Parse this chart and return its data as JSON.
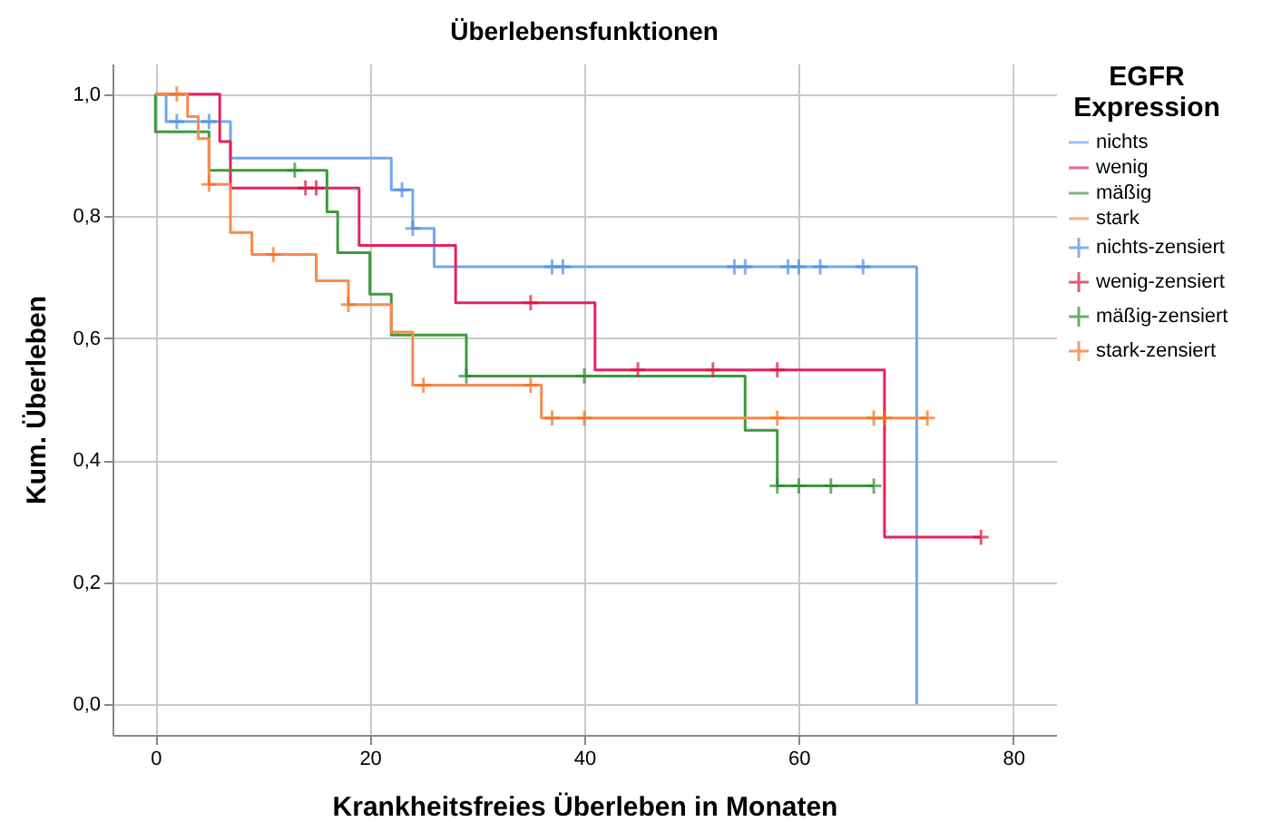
{
  "chart_data": {
    "type": "step",
    "title": "Überlebensfunktionen",
    "xlabel": "Krankheitsfreies Überleben in Monaten",
    "ylabel": "Kum. Überleben",
    "legend_title": "EGFR Expression",
    "xlim": [
      -4,
      84
    ],
    "xticks": [
      0,
      20,
      40,
      60,
      80
    ],
    "ylim": [
      -0.05,
      1.05
    ],
    "yticks": [
      {
        "value": 0,
        "label": "0,0"
      },
      {
        "value": 0.2,
        "label": "0,2"
      },
      {
        "value": 0.4,
        "label": "0,4"
      },
      {
        "value": 0.6,
        "label": "0,6"
      },
      {
        "value": 0.8,
        "label": "0,8"
      },
      {
        "value": 1,
        "label": "1,0"
      }
    ],
    "grid": true,
    "legend": "right",
    "line_style": "solid",
    "series": [
      {
        "name": "nichts",
        "marker": "none",
        "color": "#6fa8ef",
        "x": [
          0,
          1,
          7,
          22,
          24,
          26,
          71
        ],
        "values": [
          1,
          0.955,
          0.895,
          0.843,
          0.78,
          0.717,
          0
        ]
      },
      {
        "name": "wenig",
        "marker": "none",
        "color": "#e3245a",
        "x": [
          0,
          6,
          7,
          19,
          28,
          41,
          68,
          77
        ],
        "values": [
          1,
          0.922,
          0.846,
          0.752,
          0.658,
          0.548,
          0.274,
          0.274
        ]
      },
      {
        "name": "mäßig",
        "marker": "none",
        "color": "#3e9b3e",
        "x": [
          0,
          0,
          5,
          16,
          17,
          20,
          22,
          29,
          55,
          58,
          67
        ],
        "values": [
          1,
          0.938,
          0.875,
          0.807,
          0.74,
          0.672,
          0.605,
          0.538,
          0.449,
          0.358,
          0.358
        ]
      },
      {
        "name": "stark",
        "marker": "none",
        "color": "#f98a4c",
        "x": [
          0,
          3,
          4,
          5,
          7,
          9,
          15,
          18,
          22,
          24,
          36,
          72
        ],
        "values": [
          1,
          0.963,
          0.927,
          0.852,
          0.773,
          0.737,
          0.694,
          0.655,
          0.61,
          0.523,
          0.469,
          0.469
        ]
      },
      {
        "name": "nichts-zensiert",
        "type": "scatter",
        "marker": "cross",
        "color": "#4c8fe3",
        "x": [
          2,
          5,
          23,
          24,
          37,
          38,
          54,
          55,
          59,
          60,
          62,
          66
        ],
        "values": [
          0.955,
          0.955,
          0.843,
          0.78,
          0.717,
          0.717,
          0.717,
          0.717,
          0.717,
          0.717,
          0.717,
          0.717
        ]
      },
      {
        "name": "wenig-zensiert",
        "type": "scatter",
        "marker": "cross",
        "color": "#d6163e",
        "x": [
          14,
          15,
          35,
          45,
          52,
          58,
          77
        ],
        "values": [
          0.846,
          0.846,
          0.658,
          0.548,
          0.548,
          0.548,
          0.274
        ]
      },
      {
        "name": "mäßig-zensiert",
        "type": "scatter",
        "marker": "cross",
        "color": "#2e8b2e",
        "x": [
          13,
          29,
          40,
          58,
          60,
          63,
          67
        ],
        "values": [
          0.875,
          0.538,
          0.538,
          0.358,
          0.358,
          0.358,
          0.358
        ]
      },
      {
        "name": "stark-zensiert",
        "type": "scatter",
        "marker": "cross",
        "color": "#f4711f",
        "x": [
          2,
          5,
          11,
          18,
          25,
          35,
          37,
          40,
          58,
          67,
          68,
          72
        ],
        "values": [
          1,
          0.852,
          0.737,
          0.655,
          0.523,
          0.523,
          0.469,
          0.469,
          0.469,
          0.469,
          0.469,
          0.469
        ]
      }
    ]
  }
}
